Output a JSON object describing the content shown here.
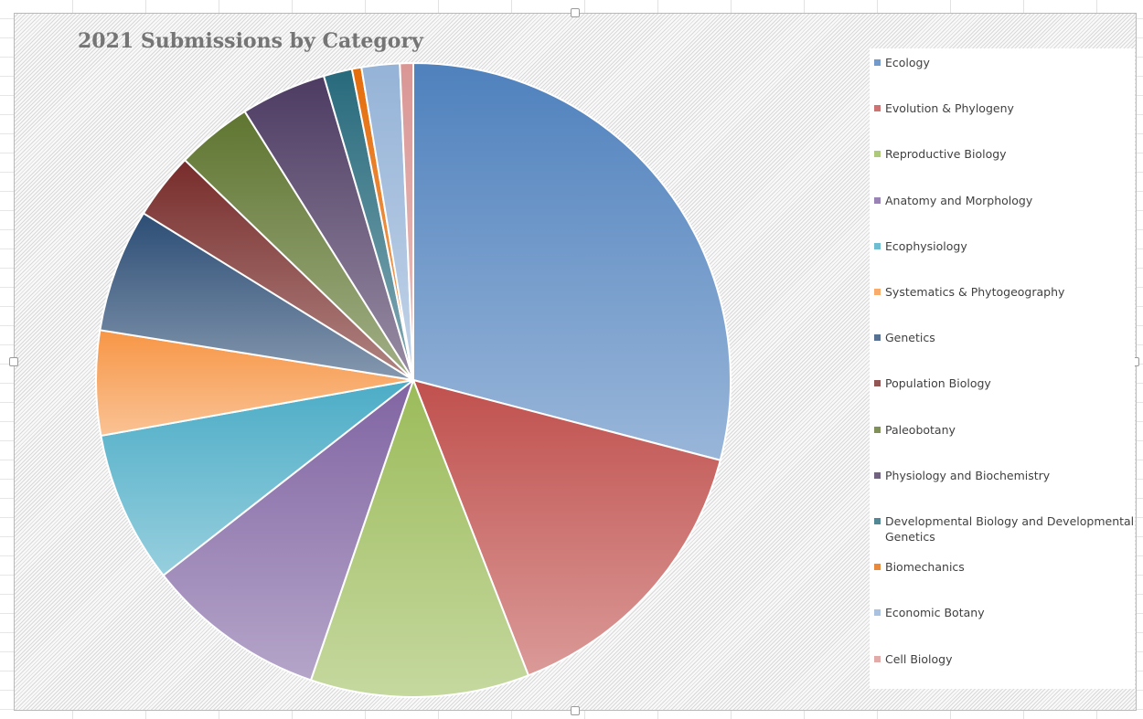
{
  "chart_data": {
    "type": "pie",
    "title": "2021 Submissions by Category",
    "legend_position": "right",
    "slices": [
      {
        "label": "Ecology",
        "value": 30.0,
        "color": "#4f81bd"
      },
      {
        "label": "Evolution & Phylogeny",
        "value": 15.5,
        "color": "#c0504d"
      },
      {
        "label": "Reproductive Biology",
        "value": 11.5,
        "color": "#9bbb59"
      },
      {
        "label": "Anatomy and Morphology",
        "value": 9.5,
        "color": "#8064a2"
      },
      {
        "label": "Ecophysiology",
        "value": 8.0,
        "color": "#4bacc6"
      },
      {
        "label": "Systematics & Phytogeography",
        "value": 5.5,
        "color": "#f79646"
      },
      {
        "label": "Genetics",
        "value": 6.5,
        "color": "#2c4d75"
      },
      {
        "label": "Population Biology",
        "value": 3.5,
        "color": "#772c2a"
      },
      {
        "label": "Paleobotany",
        "value": 4.0,
        "color": "#5f7530"
      },
      {
        "label": "Physiology and Biochemistry",
        "value": 4.5,
        "color": "#4d3b62"
      },
      {
        "label": "Developmental Biology and Developmental Genetics",
        "value": 1.5,
        "color": "#276a7c"
      },
      {
        "label": "Biomechanics",
        "value": 0.5,
        "color": "#e46c0a"
      },
      {
        "label": "Economic Botany",
        "value": 2.0,
        "color": "#95b3d7"
      },
      {
        "label": "Cell Biology",
        "value": 0.7,
        "color": "#d99694"
      }
    ]
  }
}
